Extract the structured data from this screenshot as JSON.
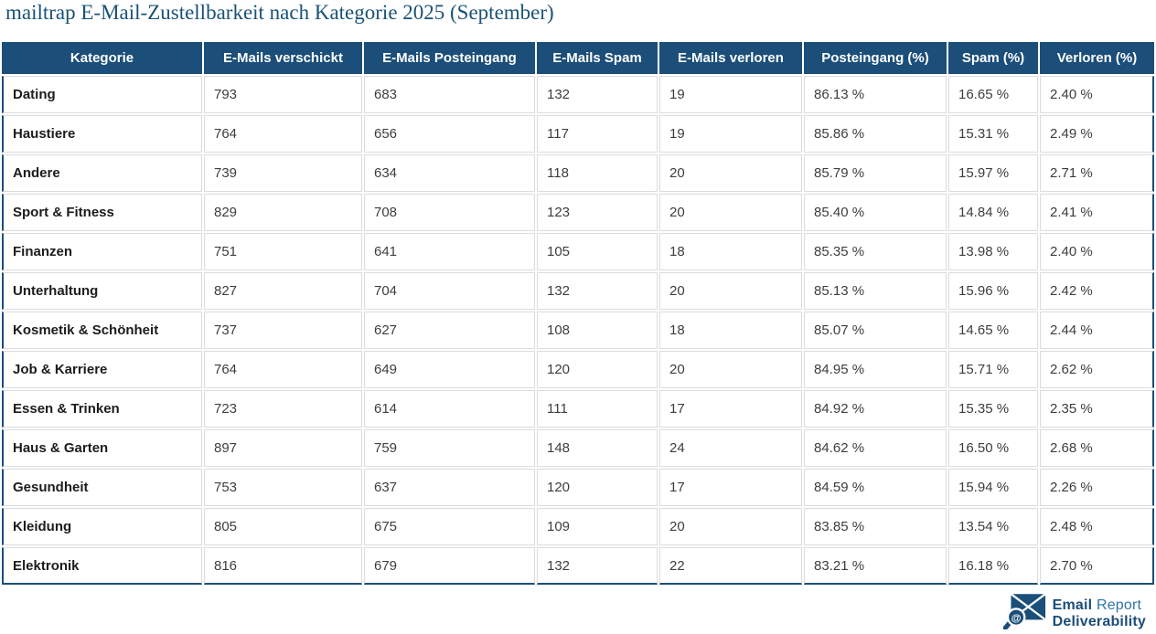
{
  "chart_data": {
    "type": "table",
    "title": "mailtrap E-Mail-Zustellbarkeit nach Kategorie 2025 (September)",
    "columns": [
      "Kategorie",
      "E-Mails verschickt",
      "E-Mails Posteingang",
      "E-Mails Spam",
      "E-Mails verloren",
      "Posteingang (%)",
      "Spam (%)",
      "Verloren (%)"
    ],
    "rows": [
      [
        "Dating",
        793,
        683,
        132,
        19,
        86.13,
        16.65,
        2.4
      ],
      [
        "Haustiere",
        764,
        656,
        117,
        19,
        85.86,
        15.31,
        2.49
      ],
      [
        "Andere",
        739,
        634,
        118,
        20,
        85.79,
        15.97,
        2.71
      ],
      [
        "Sport & Fitness",
        829,
        708,
        123,
        20,
        85.4,
        14.84,
        2.41
      ],
      [
        "Finanzen",
        751,
        641,
        105,
        18,
        85.35,
        13.98,
        2.4
      ],
      [
        "Unterhaltung",
        827,
        704,
        132,
        20,
        85.13,
        15.96,
        2.42
      ],
      [
        "Kosmetik & Schönheit",
        737,
        627,
        108,
        18,
        85.07,
        14.65,
        2.44
      ],
      [
        "Job & Karriere",
        764,
        649,
        120,
        20,
        84.95,
        15.71,
        2.62
      ],
      [
        "Essen & Trinken",
        723,
        614,
        111,
        17,
        84.92,
        15.35,
        2.35
      ],
      [
        "Haus & Garten",
        897,
        759,
        148,
        24,
        84.62,
        16.5,
        2.68
      ],
      [
        "Gesundheit",
        753,
        637,
        120,
        17,
        84.59,
        15.94,
        2.26
      ],
      [
        "Kleidung",
        805,
        675,
        109,
        20,
        83.85,
        13.54,
        2.48
      ],
      [
        "Elektronik",
        816,
        679,
        132,
        22,
        83.21,
        16.18,
        2.7
      ]
    ],
    "percent_columns_start_index": 5,
    "percent_suffix": " %",
    "layout": {
      "grid": "light-gray-inner-lines",
      "outer_border": "dark-blue",
      "header_position": "top"
    }
  },
  "logo": {
    "line1_strong": "Email",
    "line1_light": "Report",
    "line2": "Deliverability",
    "icon": "envelope-at-magnifier-icon"
  },
  "colors": {
    "header_bg": "#1b4e79",
    "table_outer_border": "#1b4e79",
    "grid_line": "#dcdcdc",
    "title_text": "#1a5276",
    "logo_dark_blue": "#1b4e79",
    "logo_light_blue": "#2e74a8"
  }
}
